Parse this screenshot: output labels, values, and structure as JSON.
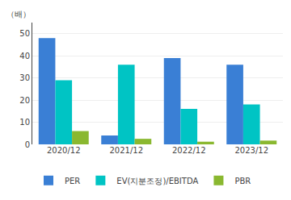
{
  "chart_data": {
    "type": "bar",
    "ylabel": "（배）",
    "categories": [
      "2020/12",
      "2021/12",
      "2022/12",
      "2023/12"
    ],
    "series": [
      {
        "name": "PER",
        "color": "#3a7fd5",
        "values": [
          48,
          4,
          39,
          36
        ]
      },
      {
        "name": "EV(지분조정)/EBITDA",
        "color": "#00c4c4",
        "values": [
          29,
          36,
          16,
          18
        ]
      },
      {
        "name": "PBR",
        "color": "#8ab830",
        "values": [
          6,
          2.5,
          1.2,
          1.7
        ]
      }
    ],
    "ylim": [
      0,
      55
    ],
    "yticks": [
      0,
      10,
      20,
      30,
      40,
      50
    ],
    "grid": true,
    "legend": "bottom"
  }
}
